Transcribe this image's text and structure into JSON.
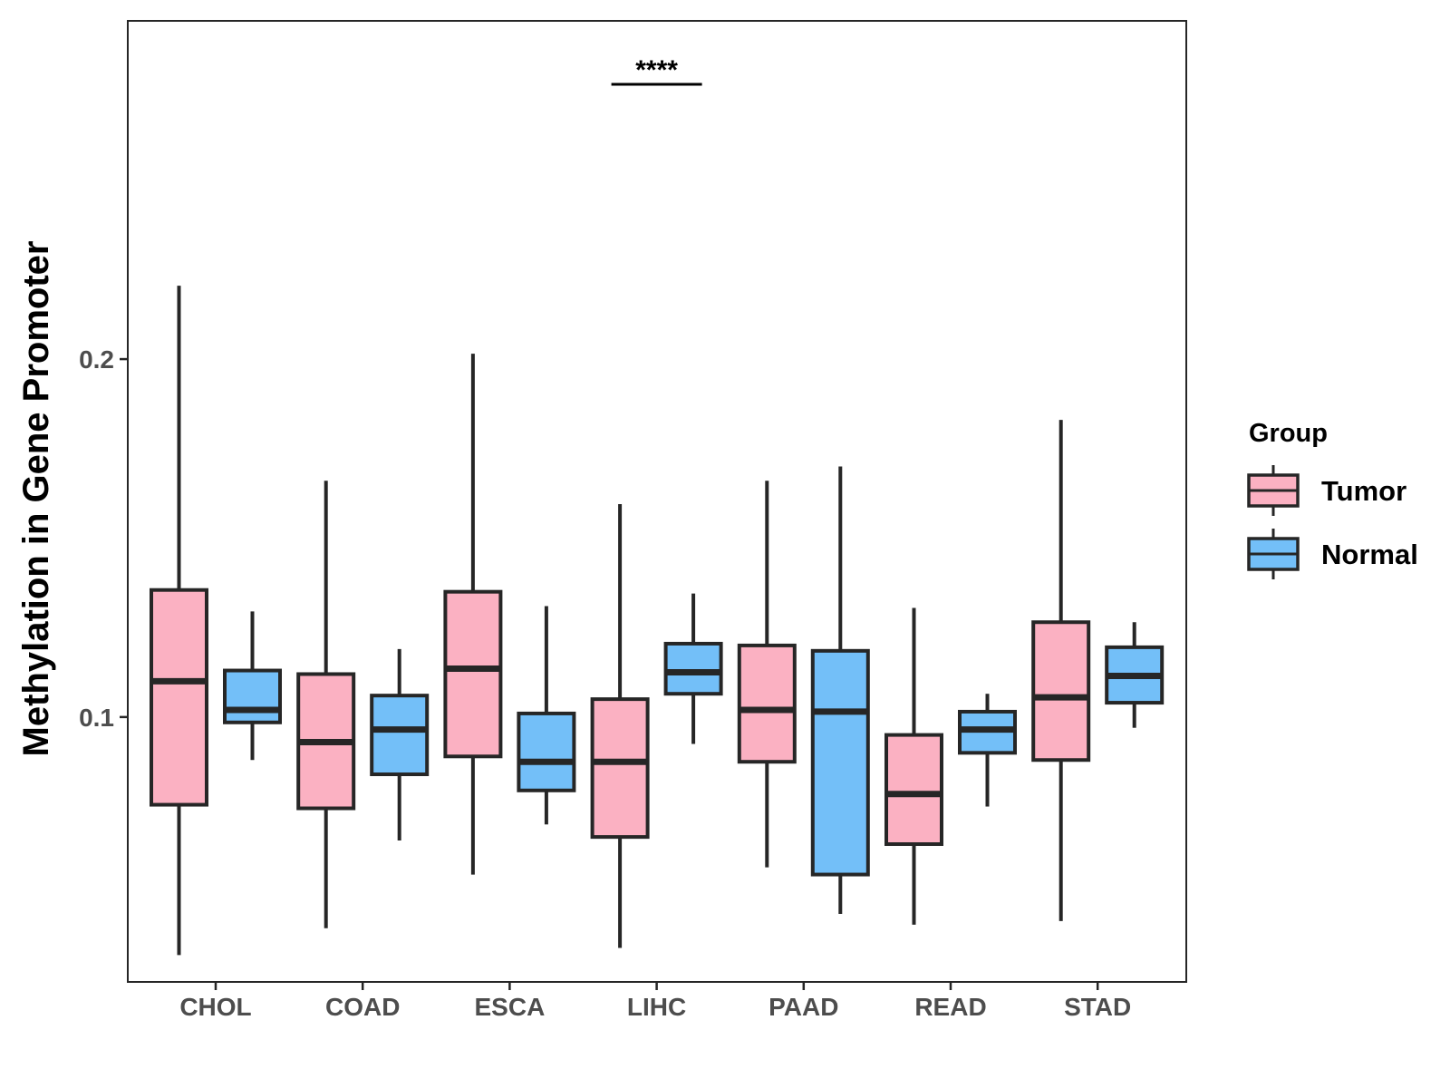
{
  "chart_data": {
    "type": "boxplot",
    "title": "",
    "xlabel": "",
    "ylabel": "Methylation in Gene Promoter",
    "ylim": [
      0.026,
      0.2945
    ],
    "yticks": [
      0.1,
      0.2
    ],
    "ytick_labels": [
      "0.1",
      "0.2"
    ],
    "categories": [
      "CHOL",
      "COAD",
      "ESCA",
      "LIHC",
      "PAAD",
      "READ",
      "STAD"
    ],
    "legend": {
      "title": "Group",
      "position": "right",
      "items": [
        {
          "name": "Tumor",
          "color": "#FBB1C2"
        },
        {
          "name": "Normal",
          "color": "#73BFF8"
        }
      ]
    },
    "series": [
      {
        "name": "Tumor",
        "color": "#FBB1C2",
        "boxes": [
          {
            "min": 0.0335,
            "q1": 0.0755,
            "median": 0.11,
            "q3": 0.1355,
            "max": 0.2205
          },
          {
            "min": 0.041,
            "q1": 0.0745,
            "median": 0.093,
            "q3": 0.112,
            "max": 0.166
          },
          {
            "min": 0.056,
            "q1": 0.089,
            "median": 0.1135,
            "q3": 0.135,
            "max": 0.2015
          },
          {
            "min": 0.0355,
            "q1": 0.0665,
            "median": 0.0875,
            "q3": 0.105,
            "max": 0.1595
          },
          {
            "min": 0.058,
            "q1": 0.0875,
            "median": 0.102,
            "q3": 0.12,
            "max": 0.166
          },
          {
            "min": 0.042,
            "q1": 0.0645,
            "median": 0.0785,
            "q3": 0.095,
            "max": 0.1305
          },
          {
            "min": 0.043,
            "q1": 0.088,
            "median": 0.1055,
            "q3": 0.1265,
            "max": 0.183
          }
        ]
      },
      {
        "name": "Normal",
        "color": "#73BFF8",
        "boxes": [
          {
            "min": 0.088,
            "q1": 0.0985,
            "median": 0.102,
            "q3": 0.113,
            "max": 0.1295
          },
          {
            "min": 0.0655,
            "q1": 0.084,
            "median": 0.0965,
            "q3": 0.106,
            "max": 0.119
          },
          {
            "min": 0.07,
            "q1": 0.0795,
            "median": 0.0875,
            "q3": 0.101,
            "max": 0.131
          },
          {
            "min": 0.0925,
            "q1": 0.1065,
            "median": 0.1125,
            "q3": 0.1205,
            "max": 0.1345
          },
          {
            "min": 0.045,
            "q1": 0.056,
            "median": 0.1015,
            "q3": 0.1185,
            "max": 0.17
          },
          {
            "min": 0.075,
            "q1": 0.09,
            "median": 0.0965,
            "q3": 0.1015,
            "max": 0.1065
          },
          {
            "min": 0.097,
            "q1": 0.104,
            "median": 0.1115,
            "q3": 0.1195,
            "max": 0.1265
          }
        ]
      }
    ],
    "annotations": [
      {
        "text": "****",
        "category": "LIHC"
      }
    ]
  }
}
